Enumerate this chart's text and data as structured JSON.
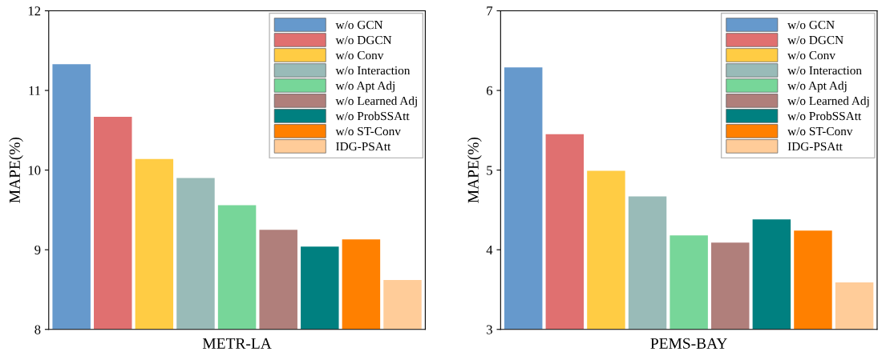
{
  "chart_data": [
    {
      "type": "bar",
      "xlabel": "METR-LA",
      "ylabel": "MAPE(%)",
      "ylim": [
        8,
        12
      ],
      "yticks": [
        8,
        9,
        10,
        11,
        12
      ],
      "legend": "top right",
      "grid": false,
      "categories": [
        null,
        null,
        null,
        null,
        null,
        null,
        null,
        null,
        null
      ],
      "series": [
        {
          "name": "w/o GCN",
          "color": "#6699cc",
          "values": [
            11.33,
            null,
            null,
            null,
            null,
            null,
            null,
            null,
            null
          ]
        },
        {
          "name": "w/o DGCN",
          "color": "#e07070",
          "values": [
            null,
            10.67,
            null,
            null,
            null,
            null,
            null,
            null,
            null
          ]
        },
        {
          "name": "w/o Conv",
          "color": "#ffcc44",
          "values": [
            null,
            null,
            10.14,
            null,
            null,
            null,
            null,
            null,
            null
          ]
        },
        {
          "name": "w/o Interaction",
          "color": "#99bbb8",
          "values": [
            null,
            null,
            null,
            9.9,
            null,
            null,
            null,
            null,
            null
          ]
        },
        {
          "name": "w/o Apt Adj",
          "color": "#77d699",
          "values": [
            null,
            null,
            null,
            null,
            9.56,
            null,
            null,
            null,
            null
          ]
        },
        {
          "name": "w/o Learned Adj",
          "color": "#b07f7b",
          "values": [
            null,
            null,
            null,
            null,
            null,
            9.25,
            null,
            null,
            null
          ]
        },
        {
          "name": "w/o ProbSSAtt",
          "color": "#008080",
          "values": [
            null,
            null,
            null,
            null,
            null,
            null,
            9.04,
            null,
            null
          ]
        },
        {
          "name": "w/o ST-Conv",
          "color": "#ff8000",
          "values": [
            null,
            null,
            null,
            null,
            null,
            null,
            null,
            9.13,
            null
          ]
        },
        {
          "name": "IDG-PSAtt",
          "color": "#ffcc99",
          "values": [
            null,
            null,
            null,
            null,
            null,
            null,
            null,
            null,
            8.62
          ]
        }
      ]
    },
    {
      "type": "bar",
      "xlabel": "PEMS-BAY",
      "ylabel": "MAPE(%)",
      "ylim": [
        3,
        7
      ],
      "yticks": [
        3,
        4,
        5,
        6,
        7
      ],
      "legend": "top right",
      "grid": false,
      "categories": [
        null,
        null,
        null,
        null,
        null,
        null,
        null,
        null,
        null
      ],
      "series": [
        {
          "name": "w/o GCN",
          "color": "#6699cc",
          "values": [
            6.29,
            null,
            null,
            null,
            null,
            null,
            null,
            null,
            null
          ]
        },
        {
          "name": "w/o DGCN",
          "color": "#e07070",
          "values": [
            null,
            5.45,
            null,
            null,
            null,
            null,
            null,
            null,
            null
          ]
        },
        {
          "name": "w/o Conv",
          "color": "#ffcc44",
          "values": [
            null,
            null,
            4.99,
            null,
            null,
            null,
            null,
            null,
            null
          ]
        },
        {
          "name": "w/o Interaction",
          "color": "#99bbb8",
          "values": [
            null,
            null,
            null,
            4.67,
            null,
            null,
            null,
            null,
            null
          ]
        },
        {
          "name": "w/o Apt Adj",
          "color": "#77d699",
          "values": [
            null,
            null,
            null,
            null,
            4.18,
            null,
            null,
            null,
            null
          ]
        },
        {
          "name": "w/o Learned Adj",
          "color": "#b07f7b",
          "values": [
            null,
            null,
            null,
            null,
            null,
            4.09,
            null,
            null,
            null
          ]
        },
        {
          "name": "w/o ProbSSAtt",
          "color": "#008080",
          "values": [
            null,
            null,
            null,
            null,
            null,
            null,
            4.38,
            null,
            null
          ]
        },
        {
          "name": "w/o ST-Conv",
          "color": "#ff8000",
          "values": [
            null,
            null,
            null,
            null,
            null,
            null,
            null,
            4.24,
            null
          ]
        },
        {
          "name": "IDG-PSAtt",
          "color": "#ffcc99",
          "values": [
            null,
            null,
            null,
            null,
            null,
            null,
            null,
            null,
            3.59
          ]
        }
      ]
    }
  ]
}
